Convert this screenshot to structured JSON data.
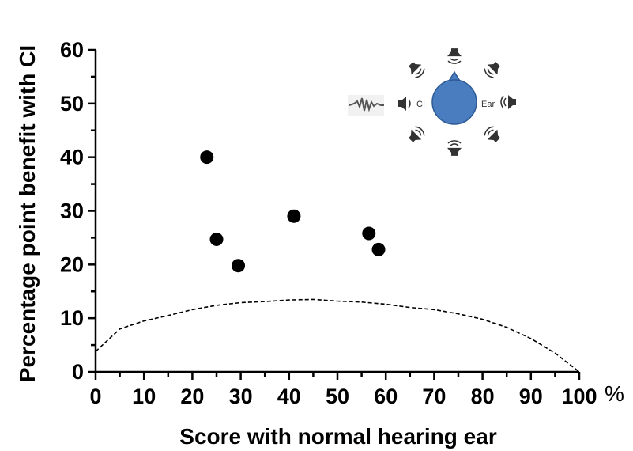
{
  "chart_data": {
    "type": "scatter",
    "xlabel": "Score with normal hearing ear",
    "ylabel": "Percentage point benefit with CI",
    "xlim": [
      0,
      100
    ],
    "ylim": [
      0,
      60
    ],
    "x_ticks": [
      "0",
      "10",
      "20",
      "30",
      "40",
      "50",
      "60",
      "70",
      "80",
      "90",
      "100"
    ],
    "y_ticks": [
      "0",
      "10",
      "20",
      "30",
      "40",
      "50",
      "60"
    ],
    "x_unit_suffix": "%",
    "grid": false,
    "points": [
      {
        "x": 23,
        "y": 40
      },
      {
        "x": 25,
        "y": 24.7
      },
      {
        "x": 29.5,
        "y": 19.8
      },
      {
        "x": 41,
        "y": 29
      },
      {
        "x": 56.5,
        "y": 25.8
      },
      {
        "x": 58.5,
        "y": 22.8
      }
    ],
    "reference_curve": {
      "style": "dashed",
      "x": [
        0,
        5,
        10,
        15,
        20,
        25,
        30,
        35,
        40,
        45,
        50,
        55,
        60,
        65,
        70,
        75,
        80,
        85,
        90,
        95,
        100
      ],
      "y": [
        3.8,
        8,
        9.5,
        10.5,
        11.6,
        12.4,
        12.9,
        13.1,
        13.4,
        13.5,
        13.2,
        13,
        12.6,
        12,
        11.6,
        10.8,
        9.8,
        8.3,
        6.2,
        3.5,
        0
      ]
    },
    "inset": {
      "ci_label": "CI",
      "ear_label": "Ear",
      "head_color": "#4a7cc0"
    }
  }
}
